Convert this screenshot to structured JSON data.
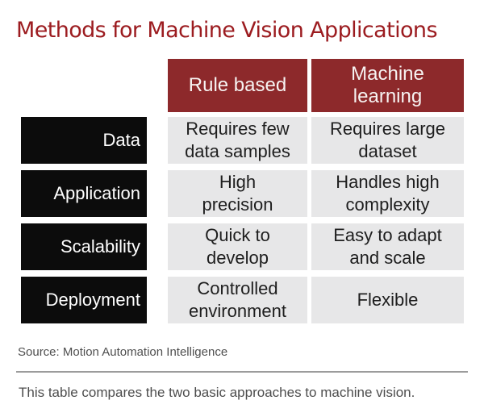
{
  "title": "Methods for Machine Vision Applications",
  "table": {
    "headers": {
      "rule_based": "Rule based",
      "machine_learning": "Machine\nlearning"
    },
    "rows": [
      {
        "label": "Data",
        "rule_based": "Requires few\ndata samples",
        "machine_learning": "Requires large\ndataset"
      },
      {
        "label": "Application",
        "rule_based": "High\nprecision",
        "machine_learning": "Handles high\ncomplexity"
      },
      {
        "label": "Scalability",
        "rule_based": "Quick to\ndevelop",
        "machine_learning": "Easy to adapt\nand scale"
      },
      {
        "label": "Deployment",
        "rule_based": "Controlled\nenvironment",
        "machine_learning": "Flexible"
      }
    ]
  },
  "source": "Source: Motion Automation Intelligence",
  "caption": "This table compares the two basic approaches to machine vision.",
  "colors": {
    "title_red": "#9c1c20",
    "header_maroon": "#8d292b",
    "label_black": "#0c0c0c",
    "cell_gray": "#e7e7e8",
    "divider_gray": "#9c9c9c"
  },
  "chart_data": {
    "type": "table",
    "title": "Methods for Machine Vision Applications",
    "columns": [
      "",
      "Rule based",
      "Machine learning"
    ],
    "rows": [
      [
        "Data",
        "Requires few data samples",
        "Requires large dataset"
      ],
      [
        "Application",
        "High precision",
        "Handles high complexity"
      ],
      [
        "Scalability",
        "Quick to develop",
        "Easy to adapt and scale"
      ],
      [
        "Deployment",
        "Controlled environment",
        "Flexible"
      ]
    ],
    "source": "Source: Motion Automation Intelligence",
    "caption": "This table compares the two basic approaches to machine vision."
  }
}
